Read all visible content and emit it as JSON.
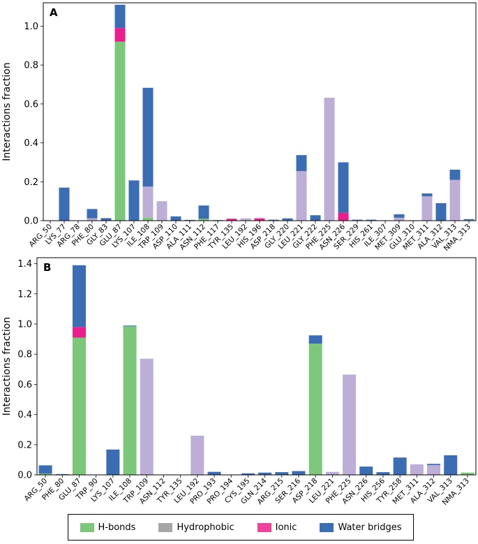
{
  "legend": [
    {
      "label": "H-bonds",
      "color": "#7cc87a"
    },
    {
      "label": "Hydrophobic",
      "color": "#a6a6a6"
    },
    {
      "label": "Ionic",
      "color": "#f0429a"
    },
    {
      "label": "Water bridges",
      "color": "#3a6db3"
    }
  ],
  "colors": {
    "hbond": "#7cc87a",
    "hydrophobic": "#bcaed6",
    "ionic": "#ed1e8c",
    "water": "#3a6db3"
  },
  "chart_data": [
    {
      "type": "bar",
      "stacked": true,
      "panel_label": "A",
      "ylabel": "Interactions fraction",
      "ylim": [
        0,
        1.12
      ],
      "yticks": [
        0.0,
        0.2,
        0.4,
        0.6,
        0.8,
        1.0
      ],
      "categories": [
        "ARG_50",
        "LYS_77",
        "ARG_78",
        "PHE_80",
        "GLY_83",
        "GLU_87",
        "LYS_107",
        "ILE_108",
        "TRP_109",
        "ASP_110",
        "ALA_111",
        "ASN_112",
        "PHE_117",
        "TYR_135",
        "LEU_192",
        "HIS_196",
        "ASP_218",
        "GLY_220",
        "LEU_221",
        "GLY_222",
        "PHE_225",
        "ASN_226",
        "SER_229",
        "HIS_261",
        "ILE_307",
        "MET_309",
        "GLU_310",
        "MET_311",
        "ALA_312",
        "VAL_313",
        "NMA_313"
      ],
      "series": [
        {
          "name": "H-bonds",
          "key": "hbond",
          "values": [
            0,
            0,
            0,
            0,
            0,
            0.92,
            0,
            0.015,
            0,
            0,
            0,
            0.01,
            0,
            0,
            0,
            0,
            0,
            0,
            0,
            0,
            0,
            0,
            0,
            0,
            0,
            0,
            0,
            0,
            0,
            0,
            0.003
          ]
        },
        {
          "name": "Hydrophobic",
          "key": "hydrophobic",
          "values": [
            0,
            0,
            0,
            0.012,
            0,
            0,
            0,
            0.16,
            0.1,
            0,
            0,
            0,
            0,
            0,
            0.012,
            0,
            0,
            0,
            0.255,
            0,
            0.632,
            0,
            0,
            0,
            0,
            0.015,
            0,
            0.125,
            0,
            0.21,
            0
          ]
        },
        {
          "name": "Ionic",
          "key": "ionic",
          "values": [
            0,
            0,
            0,
            0,
            0,
            0.07,
            0,
            0,
            0,
            0,
            0,
            0,
            0,
            0.01,
            0,
            0.012,
            0,
            0,
            0,
            0,
            0,
            0.04,
            0,
            0,
            0,
            0,
            0,
            0,
            0,
            0,
            0
          ]
        },
        {
          "name": "Water bridges",
          "key": "water",
          "values": [
            0,
            0.17,
            0,
            0.048,
            0.013,
            0.12,
            0.207,
            0.508,
            0,
            0.022,
            0.004,
            0.068,
            0.003,
            0,
            0,
            0,
            0.005,
            0.012,
            0.082,
            0.028,
            0,
            0.26,
            0.005,
            0.005,
            0.002,
            0.018,
            0.002,
            0.015,
            0.09,
            0.052,
            0.005
          ]
        }
      ]
    },
    {
      "type": "bar",
      "stacked": true,
      "panel_label": "B",
      "ylabel": "Interactions fraction",
      "ylim": [
        0,
        1.44
      ],
      "yticks": [
        0.0,
        0.2,
        0.4,
        0.6,
        0.8,
        1.0,
        1.2,
        1.4
      ],
      "categories": [
        "ARG_50",
        "PHE_80",
        "GLU_87",
        "TRP_90",
        "LYS_107",
        "ILE_108",
        "TRP_109",
        "ASN_112",
        "TYR_135",
        "LEU_192",
        "PRO_193",
        "PRO_194",
        "CYS_195",
        "GLN_214",
        "ARG_215",
        "SER_216",
        "ASP_218",
        "LEU_221",
        "PHE_225",
        "ASN_226",
        "HIS_256",
        "TYR_258",
        "MET_311",
        "ALA_312",
        "VAL_313",
        "NMA_313"
      ],
      "series": [
        {
          "name": "H-bonds",
          "key": "hbond",
          "values": [
            0.008,
            0,
            0.91,
            0,
            0,
            0.985,
            0,
            0,
            0,
            0,
            0,
            0,
            0,
            0,
            0,
            0,
            0.87,
            0,
            0,
            0,
            0,
            0,
            0,
            0,
            0,
            0.015
          ]
        },
        {
          "name": "Hydrophobic",
          "key": "hydrophobic",
          "values": [
            0,
            0,
            0,
            0,
            0,
            0,
            0.77,
            0,
            0,
            0.26,
            0,
            0,
            0,
            0,
            0,
            0,
            0,
            0.02,
            0.665,
            0,
            0,
            0,
            0.07,
            0.065,
            0,
            0
          ]
        },
        {
          "name": "Ionic",
          "key": "ionic",
          "values": [
            0,
            0,
            0.07,
            0,
            0,
            0,
            0,
            0,
            0,
            0,
            0,
            0,
            0,
            0,
            0,
            0,
            0,
            0,
            0,
            0,
            0,
            0,
            0,
            0,
            0,
            0
          ]
        },
        {
          "name": "Water bridges",
          "key": "water",
          "values": [
            0.055,
            0.005,
            0.41,
            0,
            0.168,
            0.005,
            0,
            0.002,
            0.002,
            0,
            0.02,
            0.002,
            0.01,
            0.015,
            0.018,
            0.025,
            0.055,
            0,
            0,
            0.055,
            0.018,
            0.115,
            0,
            0.008,
            0.13,
            0
          ]
        }
      ]
    }
  ]
}
